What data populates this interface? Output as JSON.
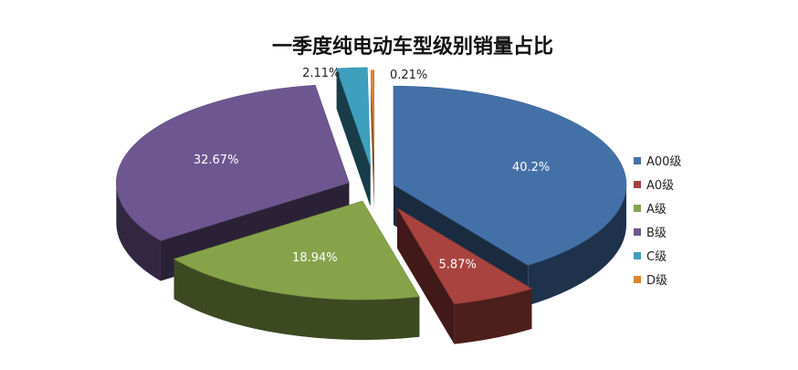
{
  "chart_data": {
    "type": "pie",
    "title": "一季度纯电动车型级别销量占比",
    "labels": [
      "A00级",
      "A0级",
      "A级",
      "B级",
      "C级",
      "D级"
    ],
    "values": [
      40.2,
      5.87,
      18.94,
      32.67,
      2.11,
      0.21
    ],
    "data_labels": [
      "40.2%",
      "5.87%",
      "18.94%",
      "32.67%",
      "2.11%",
      "0.21%"
    ],
    "colors": [
      "#4470A8",
      "#A8433F",
      "#86A34A",
      "#6E5790",
      "#3FA0BE",
      "#E2842F"
    ],
    "style": "3d-exploded",
    "legend_position": "right"
  }
}
